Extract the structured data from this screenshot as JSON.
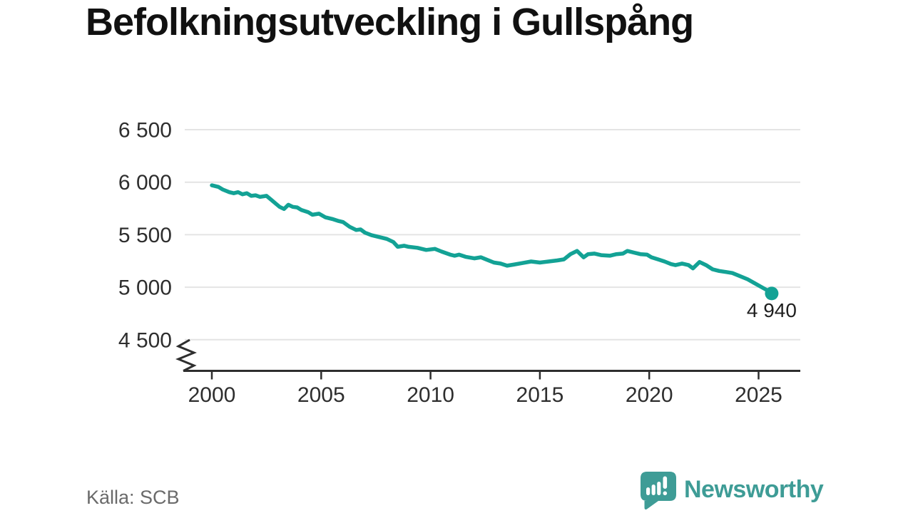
{
  "title": "Befolkningsutveckling i Gullspång",
  "source": "Källa: SCB",
  "branding": {
    "name": "Newsworthy",
    "icon": "speech-bubble-bar-chart-icon",
    "color": "#3E9C96"
  },
  "colors": {
    "line": "#13A295",
    "grid": "#E4E4E4",
    "axis": "#2E2E2E",
    "tick_text": "#2E2E2E",
    "title_text": "#111111",
    "source_text": "#6A6A6A",
    "annotation_text": "#1F1F1F",
    "background": "#FFFFFF"
  },
  "chart_data": {
    "type": "line",
    "title": "Befolkningsutveckling i Gullspång",
    "xlabel": "",
    "ylabel": "",
    "grid": "horizontal",
    "legend": "none",
    "y_axis_break": true,
    "x_range_years": [
      2000,
      2025.6
    ],
    "ylim_displayed": [
      4500,
      6500
    ],
    "x_ticks": [
      "2000",
      "2005",
      "2010",
      "2015",
      "2020",
      "2025"
    ],
    "y_ticks": [
      {
        "value": 6500,
        "label": "6 500"
      },
      {
        "value": 6000,
        "label": "6 000"
      },
      {
        "value": 5500,
        "label": "5 500"
      },
      {
        "value": 5000,
        "label": "5 000"
      },
      {
        "value": 4500,
        "label": "4 500"
      }
    ],
    "end_label": "4 940",
    "end_point": {
      "year": 2025.6,
      "value": 4940
    },
    "series": [
      {
        "points": [
          [
            2000.0,
            5970
          ],
          [
            2000.3,
            5955
          ],
          [
            2000.5,
            5930
          ],
          [
            2000.8,
            5905
          ],
          [
            2001.0,
            5895
          ],
          [
            2001.2,
            5905
          ],
          [
            2001.4,
            5885
          ],
          [
            2001.6,
            5895
          ],
          [
            2001.8,
            5870
          ],
          [
            2002.0,
            5875
          ],
          [
            2002.2,
            5860
          ],
          [
            2002.5,
            5870
          ],
          [
            2002.7,
            5835
          ],
          [
            2002.9,
            5800
          ],
          [
            2003.1,
            5765
          ],
          [
            2003.3,
            5745
          ],
          [
            2003.5,
            5785
          ],
          [
            2003.7,
            5765
          ],
          [
            2003.9,
            5760
          ],
          [
            2004.1,
            5735
          ],
          [
            2004.4,
            5715
          ],
          [
            2004.6,
            5690
          ],
          [
            2004.9,
            5700
          ],
          [
            2005.2,
            5665
          ],
          [
            2005.5,
            5650
          ],
          [
            2005.8,
            5630
          ],
          [
            2006.0,
            5620
          ],
          [
            2006.3,
            5575
          ],
          [
            2006.6,
            5545
          ],
          [
            2006.8,
            5550
          ],
          [
            2007.0,
            5520
          ],
          [
            2007.3,
            5495
          ],
          [
            2007.7,
            5475
          ],
          [
            2008.0,
            5460
          ],
          [
            2008.3,
            5430
          ],
          [
            2008.5,
            5385
          ],
          [
            2008.8,
            5395
          ],
          [
            2009.0,
            5385
          ],
          [
            2009.4,
            5375
          ],
          [
            2009.8,
            5355
          ],
          [
            2010.2,
            5365
          ],
          [
            2010.5,
            5340
          ],
          [
            2010.9,
            5310
          ],
          [
            2011.1,
            5300
          ],
          [
            2011.3,
            5310
          ],
          [
            2011.6,
            5290
          ],
          [
            2012.0,
            5275
          ],
          [
            2012.3,
            5285
          ],
          [
            2012.6,
            5260
          ],
          [
            2012.9,
            5235
          ],
          [
            2013.2,
            5225
          ],
          [
            2013.5,
            5205
          ],
          [
            2013.8,
            5215
          ],
          [
            2014.2,
            5230
          ],
          [
            2014.6,
            5245
          ],
          [
            2015.0,
            5235
          ],
          [
            2015.4,
            5245
          ],
          [
            2015.8,
            5255
          ],
          [
            2016.1,
            5265
          ],
          [
            2016.4,
            5315
          ],
          [
            2016.7,
            5345
          ],
          [
            2017.0,
            5285
          ],
          [
            2017.2,
            5315
          ],
          [
            2017.5,
            5320
          ],
          [
            2017.8,
            5305
          ],
          [
            2018.2,
            5300
          ],
          [
            2018.5,
            5315
          ],
          [
            2018.8,
            5320
          ],
          [
            2019.0,
            5345
          ],
          [
            2019.3,
            5330
          ],
          [
            2019.6,
            5315
          ],
          [
            2019.9,
            5310
          ],
          [
            2020.1,
            5285
          ],
          [
            2020.4,
            5265
          ],
          [
            2020.7,
            5245
          ],
          [
            2021.0,
            5220
          ],
          [
            2021.2,
            5210
          ],
          [
            2021.5,
            5225
          ],
          [
            2021.8,
            5210
          ],
          [
            2022.0,
            5180
          ],
          [
            2022.3,
            5240
          ],
          [
            2022.6,
            5210
          ],
          [
            2022.9,
            5170
          ],
          [
            2023.2,
            5155
          ],
          [
            2023.5,
            5145
          ],
          [
            2023.8,
            5135
          ],
          [
            2024.1,
            5110
          ],
          [
            2024.5,
            5075
          ],
          [
            2024.8,
            5040
          ],
          [
            2025.1,
            5005
          ],
          [
            2025.4,
            4970
          ],
          [
            2025.6,
            4940
          ]
        ]
      }
    ]
  }
}
